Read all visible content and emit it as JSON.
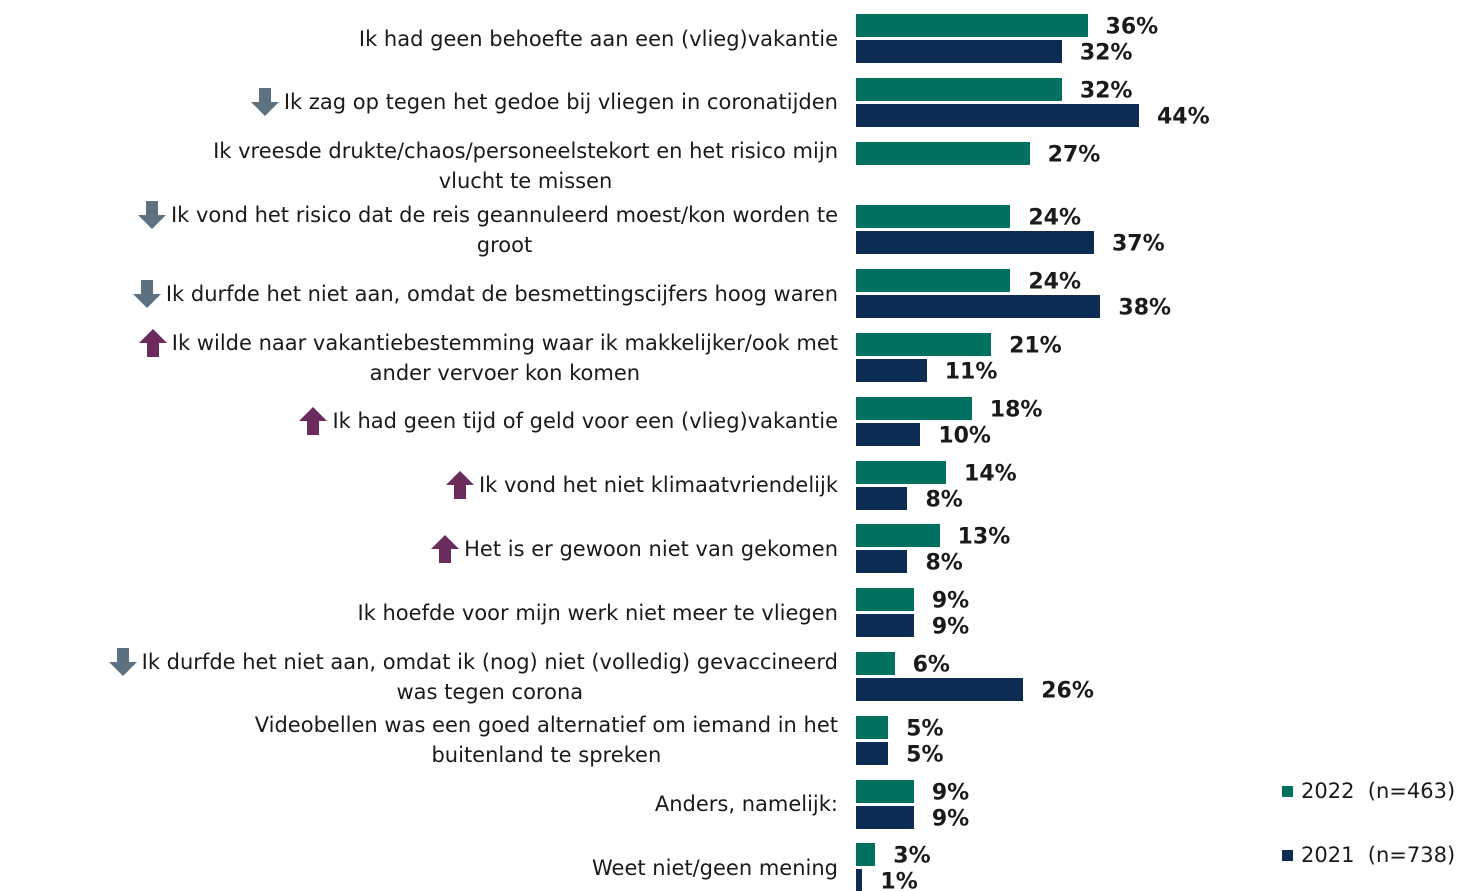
{
  "chart_data": {
    "type": "bar",
    "orientation": "horizontal",
    "categories": [
      "Ik had geen behoefte aan een (vlieg)vakantie",
      "Ik zag op tegen het gedoe bij vliegen in coronatijden",
      "Ik vreesde drukte/chaos/personeelstekort en het risico mijn\nvlucht te missen",
      "Ik vond het risico dat de reis geannuleerd moest/kon worden te\ngroot",
      "Ik durfde het niet aan, omdat de besmettingscijfers hoog waren",
      "Ik wilde naar vakantiebestemming waar ik makkelijker/ook met\nander vervoer kon komen",
      "Ik had geen tijd of geld voor een (vlieg)vakantie",
      "Ik vond het niet klimaatvriendelijk",
      "Het is er gewoon niet van gekomen",
      "Ik hoefde voor mijn werk niet meer te vliegen",
      "Ik durfde het niet aan, omdat ik (nog) niet (volledig) gevaccineerd\nwas tegen corona",
      "Videobellen was een goed alternatief om iemand in het\nbuitenland te spreken",
      "Anders, namelijk:",
      "Weet niet/geen mening"
    ],
    "trend": [
      null,
      "down",
      null,
      "down",
      "down",
      "up",
      "up",
      "up",
      "up",
      null,
      "down",
      null,
      null,
      null
    ],
    "trend_colors": {
      "up": "#6b2b5c",
      "down": "#5d7180"
    },
    "series": [
      {
        "name": "2022  (n=463)",
        "color": "#00705f",
        "values": [
          36,
          32,
          27,
          24,
          24,
          21,
          18,
          14,
          13,
          9,
          6,
          5,
          9,
          3
        ],
        "value_labels": [
          "36%",
          "32%",
          "27%",
          "24%",
          "24%",
          "21%",
          "18%",
          "14%",
          "13%",
          "9%",
          "6%",
          "5%",
          "9%",
          "3%"
        ]
      },
      {
        "name": "2021  (n=738)",
        "color": "#0c2c54",
        "values": [
          32,
          44,
          null,
          37,
          38,
          11,
          10,
          8,
          8,
          9,
          26,
          5,
          9,
          1
        ],
        "value_labels": [
          "32%",
          "44%",
          null,
          "37%",
          "38%",
          "11%",
          "10%",
          "8%",
          "8%",
          "9%",
          "26%",
          "5%",
          "9%",
          "1%"
        ]
      }
    ],
    "legend": "bottom-right"
  }
}
